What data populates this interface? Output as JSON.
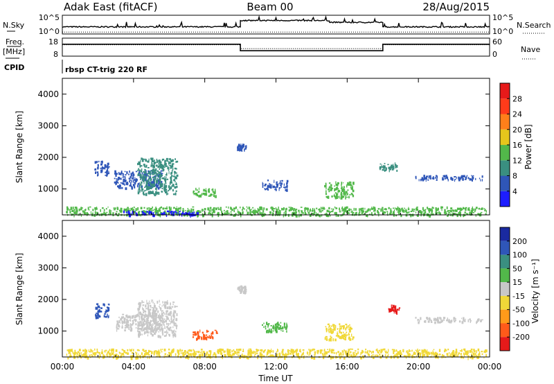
{
  "header": {
    "radar_title": "Adak East (fitACF)",
    "beam_title": "Beam 00",
    "date_title": "28/Aug/2015",
    "control_program": "rbsp CT-trig 220 RF"
  },
  "panels": {
    "nsky": {
      "label": "N.Sky",
      "right_label": "N.Search",
      "left_ticks": [
        "10^5",
        "10^0"
      ],
      "right_ticks": [
        "10^5",
        "10^0"
      ]
    },
    "freq": {
      "label_top": "Freq.",
      "label_bottom": "[MHz]",
      "right_label": "Nave",
      "left_ticks": [
        "18",
        "8"
      ],
      "right_ticks": [
        "60",
        "0"
      ]
    },
    "cpid": {
      "label": "CPID"
    }
  },
  "chart_data": [
    {
      "type": "line",
      "title": "N.Sky",
      "time_segments": [
        {
          "x": [
            0.0,
            10.0
          ],
          "level": 0.38
        },
        {
          "x": [
            10.0,
            15.0
          ],
          "level": 0.72
        },
        {
          "x": [
            15.0,
            18.0
          ],
          "level": 0.62
        },
        {
          "x": [
            18.0,
            24.0
          ],
          "level": 0.38
        }
      ],
      "ylim_labels": [
        "10^0",
        "10^5"
      ]
    },
    {
      "type": "line",
      "title": "Freq. [MHz]",
      "segments": [
        {
          "x": [
            0.0,
            10.0
          ],
          "freq_mhz": 14.6
        },
        {
          "x": [
            10.0,
            18.0
          ],
          "freq_mhz": 11.0
        },
        {
          "x": [
            18.0,
            24.0
          ],
          "freq_mhz": 14.6
        }
      ],
      "nave_segments": [
        {
          "x": [
            0.0,
            10.0
          ],
          "nave": 38
        },
        {
          "x": [
            10.0,
            18.0
          ],
          "nave": 25
        },
        {
          "x": [
            18.0,
            24.0
          ],
          "nave": 38
        }
      ],
      "ylim": [
        8,
        18
      ]
    },
    {
      "type": "heatmap",
      "title": "Power",
      "xlabel": "",
      "ylabel": "Slant Range [km]",
      "xlim": [
        0,
        24
      ],
      "ylim": [
        180,
        4500
      ],
      "x_ticks": [
        "00:00",
        "04:00",
        "08:00",
        "12:00",
        "16:00",
        "20:00",
        "00:00"
      ],
      "y_ticks": [
        1000,
        2000,
        3000,
        4000
      ],
      "colorbar": {
        "label": "Power [dB]",
        "ticks": [
          "4",
          "8",
          "12",
          "16",
          "20",
          "24",
          "28"
        ],
        "colors": [
          "#1d1dff",
          "#2f56b8",
          "#3a8f80",
          "#52b84a",
          "#e6c61c",
          "#ff7f1a",
          "#ff3b1a",
          "#e61a1a"
        ]
      },
      "echo_regions": [
        {
          "t": [
            1.8,
            2.6
          ],
          "r": [
            1450,
            1900
          ],
          "color": "#2f56b8"
        },
        {
          "t": [
            2.9,
            5.6
          ],
          "r": [
            1050,
            1600
          ],
          "color": "#2f56b8"
        },
        {
          "t": [
            4.2,
            6.4
          ],
          "r": [
            850,
            2000
          ],
          "color": "#3a8f80"
        },
        {
          "t": [
            7.3,
            8.6
          ],
          "r": [
            780,
            1050
          ],
          "color": "#52b84a"
        },
        {
          "t": [
            9.8,
            10.3
          ],
          "r": [
            2250,
            2450
          ],
          "color": "#2f56b8"
        },
        {
          "t": [
            11.2,
            12.6
          ],
          "r": [
            1000,
            1300
          ],
          "color": "#2f56b8"
        },
        {
          "t": [
            14.7,
            16.3
          ],
          "r": [
            750,
            1250
          ],
          "color": "#52b84a"
        },
        {
          "t": [
            17.8,
            18.8
          ],
          "r": [
            1600,
            1850
          ],
          "color": "#3a8f80"
        },
        {
          "t": [
            19.8,
            23.6
          ],
          "r": [
            1300,
            1450
          ],
          "color": "#2f56b8"
        },
        {
          "t": [
            0.2,
            23.8
          ],
          "r": [
            180,
            450
          ],
          "color": "#52b84a"
        },
        {
          "t": [
            3.3,
            7.6
          ],
          "r": [
            190,
            320
          ],
          "color": "#1d1dff"
        }
      ]
    },
    {
      "type": "heatmap",
      "title": "Velocity",
      "xlabel": "Time UT",
      "ylabel": "Slant Range [km]",
      "xlim": [
        0,
        24
      ],
      "ylim": [
        180,
        4500
      ],
      "x_ticks": [
        "00:00",
        "04:00",
        "08:00",
        "12:00",
        "16:00",
        "20:00",
        "00:00"
      ],
      "y_ticks": [
        1000,
        2000,
        3000,
        4000
      ],
      "colorbar": {
        "label": "Velocity [m s⁻¹]",
        "ticks": [
          "200",
          "100",
          "50",
          "15",
          "-15",
          "-50",
          "-100",
          "-200"
        ],
        "colors": [
          "#1a2aa0",
          "#2f56b8",
          "#3a8f80",
          "#52b84a",
          "#c8c8c8",
          "#f0d838",
          "#ff9a1a",
          "#ff5a1a",
          "#e61a1a"
        ]
      },
      "echo_regions": [
        {
          "t": [
            1.8,
            2.6
          ],
          "r": [
            1450,
            1900
          ],
          "color": "#2f56b8"
        },
        {
          "t": [
            3.0,
            5.6
          ],
          "r": [
            1050,
            1550
          ],
          "color": "#c8c8c8"
        },
        {
          "t": [
            4.2,
            6.4
          ],
          "r": [
            850,
            2000
          ],
          "color": "#c8c8c8"
        },
        {
          "t": [
            7.3,
            8.7
          ],
          "r": [
            780,
            1050
          ],
          "color": "#ff5a1a"
        },
        {
          "t": [
            9.8,
            10.3
          ],
          "r": [
            2250,
            2450
          ],
          "color": "#c8c8c8"
        },
        {
          "t": [
            11.2,
            12.6
          ],
          "r": [
            1000,
            1300
          ],
          "color": "#52b84a"
        },
        {
          "t": [
            14.7,
            16.3
          ],
          "r": [
            750,
            1250
          ],
          "color": "#f0d838"
        },
        {
          "t": [
            18.3,
            18.9
          ],
          "r": [
            1600,
            1850
          ],
          "color": "#e61a1a"
        },
        {
          "t": [
            19.8,
            23.6
          ],
          "r": [
            1300,
            1450
          ],
          "color": "#c8c8c8"
        },
        {
          "t": [
            0.2,
            23.8
          ],
          "r": [
            180,
            450
          ],
          "color": "#f0d838"
        }
      ]
    }
  ]
}
